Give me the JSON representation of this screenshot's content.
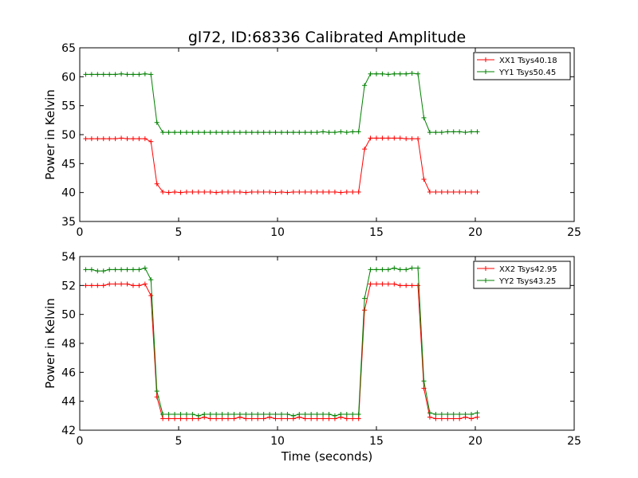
{
  "figure": {
    "title": "gl72, ID:68336 Calibrated Amplitude",
    "xlabel": "Time (seconds)"
  },
  "chart_data": [
    {
      "type": "line",
      "title": "gl72, ID:68336 Calibrated Amplitude",
      "xlabel": "",
      "ylabel": "Power in Kelvin",
      "xlim": [
        0,
        25
      ],
      "ylim": [
        35,
        65
      ],
      "xticks": [
        0,
        5,
        10,
        15,
        20,
        25
      ],
      "yticks": [
        35,
        40,
        45,
        50,
        55,
        60,
        65
      ],
      "grid": false,
      "legend": "top-right",
      "x": [
        0.3,
        0.6,
        0.9,
        1.2,
        1.5,
        1.8,
        2.1,
        2.4,
        2.7,
        3.0,
        3.3,
        3.6,
        3.9,
        4.2,
        4.5,
        4.8,
        5.1,
        5.4,
        5.7,
        6.0,
        6.3,
        6.6,
        6.9,
        7.2,
        7.5,
        7.8,
        8.1,
        8.4,
        8.7,
        9.0,
        9.3,
        9.6,
        9.9,
        10.2,
        10.5,
        10.8,
        11.1,
        11.4,
        11.7,
        12.0,
        12.3,
        12.6,
        12.9,
        13.2,
        13.5,
        13.8,
        14.1,
        14.4,
        14.7,
        15.0,
        15.3,
        15.6,
        15.9,
        16.2,
        16.5,
        16.8,
        17.1,
        17.4,
        17.7,
        18.0,
        18.3,
        18.6,
        18.9,
        19.2,
        19.5,
        19.8,
        20.1
      ],
      "series": [
        {
          "name": "XX1 Tsys40.18",
          "color": "#ff0000",
          "values": [
            49.3,
            49.3,
            49.3,
            49.3,
            49.3,
            49.3,
            49.4,
            49.3,
            49.3,
            49.3,
            49.3,
            48.8,
            41.5,
            40.1,
            40.0,
            40.1,
            40.0,
            40.1,
            40.1,
            40.1,
            40.1,
            40.1,
            40.0,
            40.1,
            40.1,
            40.1,
            40.1,
            40.0,
            40.1,
            40.1,
            40.1,
            40.1,
            40.0,
            40.1,
            40.0,
            40.1,
            40.1,
            40.1,
            40.1,
            40.1,
            40.1,
            40.1,
            40.1,
            40.0,
            40.1,
            40.1,
            40.1,
            47.5,
            49.4,
            49.4,
            49.4,
            49.4,
            49.4,
            49.4,
            49.3,
            49.3,
            49.3,
            42.3,
            40.1,
            40.1,
            40.1,
            40.1,
            40.1,
            40.1,
            40.1,
            40.1,
            40.1
          ]
        },
        {
          "name": "YY1 Tsys50.45",
          "color": "#008000",
          "values": [
            60.4,
            60.4,
            60.4,
            60.4,
            60.4,
            60.4,
            60.5,
            60.4,
            60.4,
            60.4,
            60.5,
            60.4,
            52.1,
            50.4,
            50.4,
            50.4,
            50.4,
            50.4,
            50.4,
            50.4,
            50.4,
            50.4,
            50.4,
            50.4,
            50.4,
            50.4,
            50.4,
            50.4,
            50.4,
            50.4,
            50.4,
            50.4,
            50.4,
            50.4,
            50.4,
            50.4,
            50.4,
            50.4,
            50.4,
            50.4,
            50.5,
            50.4,
            50.4,
            50.5,
            50.4,
            50.5,
            50.5,
            58.5,
            60.5,
            60.5,
            60.5,
            60.4,
            60.5,
            60.5,
            60.5,
            60.6,
            60.5,
            52.9,
            50.4,
            50.4,
            50.4,
            50.5,
            50.5,
            50.5,
            50.4,
            50.5,
            50.5
          ]
        }
      ]
    },
    {
      "type": "line",
      "title": "",
      "xlabel": "Time (seconds)",
      "ylabel": "Power in Kelvin",
      "xlim": [
        0,
        25
      ],
      "ylim": [
        42,
        54
      ],
      "xticks": [
        0,
        5,
        10,
        15,
        20,
        25
      ],
      "yticks": [
        42,
        44,
        46,
        48,
        50,
        52,
        54
      ],
      "grid": false,
      "legend": "top-right",
      "x": [
        0.3,
        0.6,
        0.9,
        1.2,
        1.5,
        1.8,
        2.1,
        2.4,
        2.7,
        3.0,
        3.3,
        3.6,
        3.9,
        4.2,
        4.5,
        4.8,
        5.1,
        5.4,
        5.7,
        6.0,
        6.3,
        6.6,
        6.9,
        7.2,
        7.5,
        7.8,
        8.1,
        8.4,
        8.7,
        9.0,
        9.3,
        9.6,
        9.9,
        10.2,
        10.5,
        10.8,
        11.1,
        11.4,
        11.7,
        12.0,
        12.3,
        12.6,
        12.9,
        13.2,
        13.5,
        13.8,
        14.1,
        14.4,
        14.7,
        15.0,
        15.3,
        15.6,
        15.9,
        16.2,
        16.5,
        16.8,
        17.1,
        17.4,
        17.7,
        18.0,
        18.3,
        18.6,
        18.9,
        19.2,
        19.5,
        19.8,
        20.1
      ],
      "series": [
        {
          "name": "XX2 Tsys42.95",
          "color": "#ff0000",
          "values": [
            52.0,
            52.0,
            52.0,
            52.0,
            52.1,
            52.1,
            52.1,
            52.1,
            52.0,
            52.0,
            52.1,
            51.3,
            44.3,
            42.8,
            42.8,
            42.8,
            42.8,
            42.8,
            42.8,
            42.8,
            42.9,
            42.8,
            42.8,
            42.8,
            42.8,
            42.8,
            42.9,
            42.8,
            42.8,
            42.8,
            42.8,
            42.9,
            42.8,
            42.8,
            42.8,
            42.8,
            42.9,
            42.8,
            42.8,
            42.8,
            42.8,
            42.8,
            42.8,
            42.9,
            42.8,
            42.8,
            42.8,
            50.3,
            52.1,
            52.1,
            52.1,
            52.1,
            52.1,
            52.0,
            52.0,
            52.0,
            52.0,
            44.9,
            42.9,
            42.8,
            42.8,
            42.8,
            42.8,
            42.8,
            42.9,
            42.8,
            42.9
          ]
        },
        {
          "name": "YY2 Tsys43.25",
          "color": "#008000",
          "values": [
            53.1,
            53.1,
            53.0,
            53.0,
            53.1,
            53.1,
            53.1,
            53.1,
            53.1,
            53.1,
            53.2,
            52.4,
            44.7,
            43.1,
            43.1,
            43.1,
            43.1,
            43.1,
            43.1,
            43.0,
            43.1,
            43.1,
            43.1,
            43.1,
            43.1,
            43.1,
            43.1,
            43.1,
            43.1,
            43.1,
            43.1,
            43.1,
            43.1,
            43.1,
            43.1,
            43.0,
            43.1,
            43.1,
            43.1,
            43.1,
            43.1,
            43.1,
            43.0,
            43.1,
            43.1,
            43.1,
            43.1,
            51.1,
            53.1,
            53.1,
            53.1,
            53.1,
            53.2,
            53.1,
            53.1,
            53.2,
            53.2,
            45.4,
            43.2,
            43.1,
            43.1,
            43.1,
            43.1,
            43.1,
            43.1,
            43.1,
            43.2
          ]
        }
      ]
    }
  ]
}
